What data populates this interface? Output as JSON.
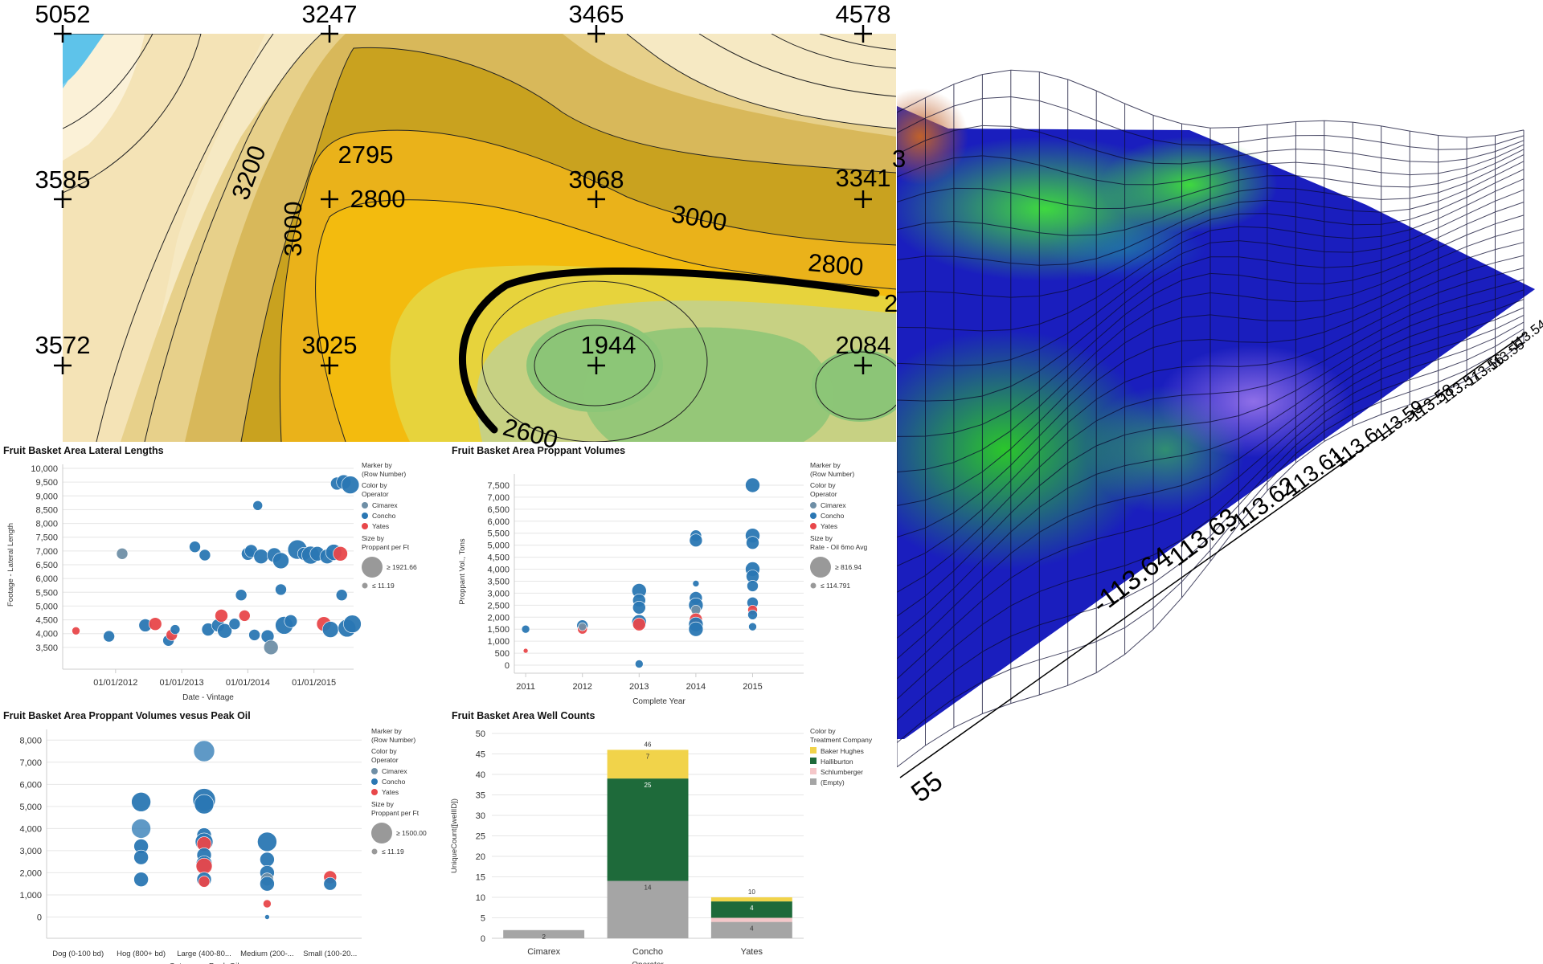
{
  "contour_map": {
    "wells": [
      {
        "label": "5052"
      },
      {
        "label": "3247"
      },
      {
        "label": "3465"
      },
      {
        "label": "4578"
      },
      {
        "label": "3585"
      },
      {
        "label": "2795"
      },
      {
        "label": "3068"
      },
      {
        "label": "3341"
      },
      {
        "label": "3572"
      },
      {
        "label": "3025"
      },
      {
        "label": "1944"
      },
      {
        "label": "2084"
      }
    ],
    "contour_labels": [
      "3200",
      "3000",
      "2800",
      "3000",
      "2800",
      "2600"
    ],
    "edge_fragments": [
      "3",
      "2"
    ]
  },
  "surface_3d": {
    "axis_ticks": [
      "-113.54",
      "-113.55",
      "-113.56",
      "-113.57",
      "-113.58",
      "-113.59",
      "-113.6",
      "-113.61",
      "-113.62",
      "-113.63",
      "-113.64",
      "55"
    ]
  },
  "chart_data": [
    {
      "type": "scatter",
      "title": "Fruit Basket Area Lateral Lengths",
      "xlabel": "Date - Vintage",
      "ylabel": "Footage - Lateral Length",
      "x_ticks": [
        "01/01/2012",
        "01/01/2013",
        "01/01/2014",
        "01/01/2015"
      ],
      "y_ticks": [
        "10,000",
        "9,500",
        "9,000",
        "8,500",
        "8,000",
        "7,500",
        "7,000",
        "6,500",
        "6,000",
        "5,500",
        "5,000",
        "4,500",
        "4,000",
        "3,500"
      ],
      "ylim": [
        3000,
        10000
      ],
      "xlim": [
        2011.2,
        2015.6
      ],
      "legend": {
        "marker_by": "Marker by",
        "marker_by_sub": "(Row Number)",
        "color_by": "Color by",
        "color_by_sub": "Operator",
        "series": [
          "Cimarex",
          "Concho",
          "Yates"
        ],
        "size_by": "Size by",
        "size_by_sub": "Proppant per Ft",
        "size_max": "≥ 1921.66",
        "size_min": "≤ 11.19"
      },
      "colors": {
        "Cimarex": "#6f8fa6",
        "Concho": "#2a77b3",
        "Yates": "#e8474a"
      },
      "points": [
        {
          "x": 2011.4,
          "y": 4100,
          "s": "Yates",
          "r": 5
        },
        {
          "x": 2011.9,
          "y": 3900,
          "s": "Concho",
          "r": 7
        },
        {
          "x": 2012.1,
          "y": 6900,
          "s": "Cimarex",
          "r": 7
        },
        {
          "x": 2012.45,
          "y": 4300,
          "s": "Concho",
          "r": 8
        },
        {
          "x": 2012.6,
          "y": 4350,
          "s": "Yates",
          "r": 8
        },
        {
          "x": 2012.8,
          "y": 3750,
          "s": "Concho",
          "r": 7
        },
        {
          "x": 2012.85,
          "y": 3950,
          "s": "Yates",
          "r": 7
        },
        {
          "x": 2012.9,
          "y": 4150,
          "s": "Concho",
          "r": 6
        },
        {
          "x": 2013.2,
          "y": 7150,
          "s": "Concho",
          "r": 7
        },
        {
          "x": 2013.35,
          "y": 6850,
          "s": "Concho",
          "r": 7
        },
        {
          "x": 2013.4,
          "y": 4150,
          "s": "Concho",
          "r": 8
        },
        {
          "x": 2013.55,
          "y": 4300,
          "s": "Concho",
          "r": 8
        },
        {
          "x": 2013.6,
          "y": 4650,
          "s": "Yates",
          "r": 8
        },
        {
          "x": 2013.65,
          "y": 4100,
          "s": "Concho",
          "r": 9
        },
        {
          "x": 2013.8,
          "y": 4350,
          "s": "Concho",
          "r": 7
        },
        {
          "x": 2013.9,
          "y": 5400,
          "s": "Concho",
          "r": 7
        },
        {
          "x": 2013.95,
          "y": 4650,
          "s": "Yates",
          "r": 7
        },
        {
          "x": 2014.0,
          "y": 6900,
          "s": "Concho",
          "r": 8
        },
        {
          "x": 2014.05,
          "y": 7000,
          "s": "Concho",
          "r": 8
        },
        {
          "x": 2014.1,
          "y": 3950,
          "s": "Concho",
          "r": 7
        },
        {
          "x": 2014.15,
          "y": 8650,
          "s": "Concho",
          "r": 6
        },
        {
          "x": 2014.2,
          "y": 6800,
          "s": "Concho",
          "r": 9
        },
        {
          "x": 2014.3,
          "y": 3900,
          "s": "Concho",
          "r": 8
        },
        {
          "x": 2014.35,
          "y": 3500,
          "s": "Cimarex",
          "r": 9
        },
        {
          "x": 2014.4,
          "y": 6850,
          "s": "Concho",
          "r": 9
        },
        {
          "x": 2014.5,
          "y": 6650,
          "s": "Concho",
          "r": 10
        },
        {
          "x": 2014.55,
          "y": 4300,
          "s": "Concho",
          "r": 11
        },
        {
          "x": 2014.5,
          "y": 5600,
          "s": "Concho",
          "r": 7
        },
        {
          "x": 2014.65,
          "y": 4450,
          "s": "Concho",
          "r": 8
        },
        {
          "x": 2014.75,
          "y": 7050,
          "s": "Concho",
          "r": 12
        },
        {
          "x": 2014.85,
          "y": 6900,
          "s": "Concho",
          "r": 8
        },
        {
          "x": 2014.95,
          "y": 6850,
          "s": "Concho",
          "r": 11
        },
        {
          "x": 2015.05,
          "y": 6900,
          "s": "Concho",
          "r": 9
        },
        {
          "x": 2015.15,
          "y": 4350,
          "s": "Yates",
          "r": 9
        },
        {
          "x": 2015.2,
          "y": 6800,
          "s": "Concho",
          "r": 9
        },
        {
          "x": 2015.25,
          "y": 4150,
          "s": "Concho",
          "r": 10
        },
        {
          "x": 2015.3,
          "y": 6950,
          "s": "Concho",
          "r": 10
        },
        {
          "x": 2015.35,
          "y": 9450,
          "s": "Concho",
          "r": 8
        },
        {
          "x": 2015.4,
          "y": 6900,
          "s": "Yates",
          "r": 9
        },
        {
          "x": 2015.42,
          "y": 5400,
          "s": "Concho",
          "r": 7
        },
        {
          "x": 2015.45,
          "y": 9500,
          "s": "Concho",
          "r": 9
        },
        {
          "x": 2015.5,
          "y": 4200,
          "s": "Concho",
          "r": 11
        },
        {
          "x": 2015.55,
          "y": 9400,
          "s": "Concho",
          "r": 11
        },
        {
          "x": 2015.58,
          "y": 4350,
          "s": "Concho",
          "r": 11
        }
      ]
    },
    {
      "type": "scatter",
      "title": "Fruit Basket Area Proppant Volumes",
      "xlabel": "Complete Year",
      "ylabel": "Proppant Vol., Tons",
      "x_ticks": [
        "2011",
        "2012",
        "2013",
        "2014",
        "2015"
      ],
      "y_ticks": [
        "7,500",
        "7,000",
        "6,500",
        "6,000",
        "5,500",
        "5,000",
        "4,500",
        "4,000",
        "3,500",
        "3,000",
        "2,500",
        "2,000",
        "1,500",
        "1,000",
        "500",
        "0"
      ],
      "ylim": [
        0,
        7800
      ],
      "xlim": [
        2010.8,
        2015.9
      ],
      "legend": {
        "marker_by": "Marker by",
        "marker_by_sub": "(Row Number)",
        "color_by": "Color by",
        "color_by_sub": "Operator",
        "series": [
          "Cimarex",
          "Concho",
          "Yates"
        ],
        "size_by": "Size by",
        "size_by_sub": "Rate - Oil 6mo Avg",
        "size_max": "≥ 816.94",
        "size_min": "≤ 114.791"
      },
      "colors": {
        "Cimarex": "#6f8fa6",
        "Concho": "#2a77b3",
        "Yates": "#e8474a"
      },
      "points": [
        {
          "x": 2011,
          "y": 1500,
          "s": "Concho",
          "r": 5
        },
        {
          "x": 2011,
          "y": 600,
          "s": "Yates",
          "r": 3
        },
        {
          "x": 2012,
          "y": 1650,
          "s": "Concho",
          "r": 7
        },
        {
          "x": 2012,
          "y": 1500,
          "s": "Yates",
          "r": 6
        },
        {
          "x": 2012,
          "y": 1600,
          "s": "Cimarex",
          "r": 5
        },
        {
          "x": 2013,
          "y": 3100,
          "s": "Concho",
          "r": 9
        },
        {
          "x": 2013,
          "y": 2700,
          "s": "Concho",
          "r": 8
        },
        {
          "x": 2013,
          "y": 2400,
          "s": "Concho",
          "r": 8
        },
        {
          "x": 2013,
          "y": 1800,
          "s": "Concho",
          "r": 9
        },
        {
          "x": 2013,
          "y": 1700,
          "s": "Yates",
          "r": 8
        },
        {
          "x": 2013,
          "y": 50,
          "s": "Concho",
          "r": 5
        },
        {
          "x": 2014,
          "y": 5400,
          "s": "Concho",
          "r": 7
        },
        {
          "x": 2014,
          "y": 5200,
          "s": "Concho",
          "r": 8
        },
        {
          "x": 2014,
          "y": 3400,
          "s": "Concho",
          "r": 4
        },
        {
          "x": 2014,
          "y": 2800,
          "s": "Concho",
          "r": 8
        },
        {
          "x": 2014,
          "y": 2500,
          "s": "Concho",
          "r": 9
        },
        {
          "x": 2014,
          "y": 2300,
          "s": "Cimarex",
          "r": 6
        },
        {
          "x": 2014,
          "y": 1900,
          "s": "Yates",
          "r": 8
        },
        {
          "x": 2014,
          "y": 1700,
          "s": "Concho",
          "r": 9
        },
        {
          "x": 2014,
          "y": 1500,
          "s": "Concho",
          "r": 9
        },
        {
          "x": 2015,
          "y": 7500,
          "s": "Concho",
          "r": 9
        },
        {
          "x": 2015,
          "y": 5400,
          "s": "Concho",
          "r": 9
        },
        {
          "x": 2015,
          "y": 5100,
          "s": "Concho",
          "r": 8
        },
        {
          "x": 2015,
          "y": 4000,
          "s": "Concho",
          "r": 9
        },
        {
          "x": 2015,
          "y": 3700,
          "s": "Concho",
          "r": 8
        },
        {
          "x": 2015,
          "y": 3300,
          "s": "Concho",
          "r": 7
        },
        {
          "x": 2015,
          "y": 2600,
          "s": "Concho",
          "r": 7
        },
        {
          "x": 2015,
          "y": 2300,
          "s": "Yates",
          "r": 6
        },
        {
          "x": 2015,
          "y": 2100,
          "s": "Concho",
          "r": 6
        },
        {
          "x": 2015,
          "y": 1600,
          "s": "Concho",
          "r": 5
        }
      ]
    },
    {
      "type": "scatter",
      "title": "Fruit Basket Area Proppant Volumes vesus Peak Oil",
      "xlabel": "Category - Peak Oil",
      "ylabel": "Proppant Vol., Tons",
      "categories": [
        "Dog (0-100 bd)",
        "Hog (800+ bd)",
        "Large (400-80...",
        "Medium (200-...",
        "Small (100-20..."
      ],
      "y_ticks": [
        "8,000",
        "7,000",
        "6,000",
        "5,000",
        "4,000",
        "3,000",
        "2,000",
        "1,000",
        "0"
      ],
      "ylim": [
        -600,
        8300
      ],
      "legend": {
        "marker_by": "Marker by",
        "marker_by_sub": "(Row Number)",
        "color_by": "Color by",
        "color_by_sub": "Operator",
        "series": [
          "Cimarex",
          "Concho",
          "Yates"
        ],
        "size_by": "Size by",
        "size_by_sub": "Proppant per Ft",
        "size_max": "≥ 1500.00",
        "size_min": "≤ 11.19"
      },
      "colors": {
        "Cimarex": "#6f8fa6",
        "Concho": "#2a77b3",
        "Yates": "#e8474a"
      },
      "points": [
        {
          "c": 1,
          "y": 5200,
          "s": "Concho",
          "r": 12
        },
        {
          "c": 1,
          "y": 4000,
          "s": "Concho",
          "r": 12,
          "light": true
        },
        {
          "c": 1,
          "y": 3200,
          "s": "Concho",
          "r": 9
        },
        {
          "c": 1,
          "y": 2700,
          "s": "Concho",
          "r": 9
        },
        {
          "c": 1,
          "y": 1700,
          "s": "Concho",
          "r": 9
        },
        {
          "c": 2,
          "y": 7500,
          "s": "Concho",
          "r": 13,
          "light": true
        },
        {
          "c": 2,
          "y": 5300,
          "s": "Concho",
          "r": 14
        },
        {
          "c": 2,
          "y": 5100,
          "s": "Concho",
          "r": 12
        },
        {
          "c": 2,
          "y": 3700,
          "s": "Concho",
          "r": 9
        },
        {
          "c": 2,
          "y": 3400,
          "s": "Concho",
          "r": 11
        },
        {
          "c": 2,
          "y": 3300,
          "s": "Yates",
          "r": 9
        },
        {
          "c": 2,
          "y": 2800,
          "s": "Concho",
          "r": 9
        },
        {
          "c": 2,
          "y": 2400,
          "s": "Concho",
          "r": 10
        },
        {
          "c": 2,
          "y": 2300,
          "s": "Yates",
          "r": 10
        },
        {
          "c": 2,
          "y": 1700,
          "s": "Concho",
          "r": 9
        },
        {
          "c": 2,
          "y": 1600,
          "s": "Yates",
          "r": 7
        },
        {
          "c": 3,
          "y": 3400,
          "s": "Concho",
          "r": 12
        },
        {
          "c": 3,
          "y": 2600,
          "s": "Concho",
          "r": 9
        },
        {
          "c": 3,
          "y": 2000,
          "s": "Concho",
          "r": 9
        },
        {
          "c": 3,
          "y": 1700,
          "s": "Cimarex",
          "r": 8
        },
        {
          "c": 3,
          "y": 1500,
          "s": "Concho",
          "r": 9
        },
        {
          "c": 3,
          "y": 600,
          "s": "Yates",
          "r": 5
        },
        {
          "c": 3,
          "y": 0,
          "s": "Concho",
          "r": 3
        },
        {
          "c": 4,
          "y": 1800,
          "s": "Yates",
          "r": 8
        },
        {
          "c": 4,
          "y": 1500,
          "s": "Concho",
          "r": 8
        }
      ]
    },
    {
      "type": "bar",
      "stacked": true,
      "title": "Fruit Basket Area Well Counts",
      "xlabel": "Operator",
      "ylabel": "UniqueCount([wellID])",
      "categories": [
        "Cimarex",
        "Concho",
        "Yates"
      ],
      "y_ticks": [
        "50",
        "45",
        "40",
        "35",
        "30",
        "25",
        "20",
        "15",
        "10",
        "5",
        "0"
      ],
      "ylim": [
        0,
        50
      ],
      "legend": {
        "color_by": "Color by",
        "color_by_sub": "Treatment Company",
        "series": [
          "Baker Hughes",
          "Halliburton",
          "Schlumberger",
          "(Empty)"
        ]
      },
      "colors": {
        "Baker Hughes": "#f1d34a",
        "Halliburton": "#1e6a3a",
        "Schlumberger": "#f5c7c9",
        "(Empty)": "#a5a5a5"
      },
      "stacks": [
        [
          {
            "s": "(Empty)",
            "v": 2
          }
        ],
        [
          {
            "s": "(Empty)",
            "v": 14
          },
          {
            "s": "Halliburton",
            "v": 25
          },
          {
            "s": "Baker Hughes",
            "v": 7
          }
        ],
        [
          {
            "s": "(Empty)",
            "v": 4
          },
          {
            "s": "Schlumberger",
            "v": 1
          },
          {
            "s": "Halliburton",
            "v": 4
          },
          {
            "s": "Baker Hughes",
            "v": 1
          }
        ]
      ],
      "segment_labels": [
        [
          {
            "s": 0,
            "text": "2"
          }
        ],
        [
          {
            "s": 0,
            "text": "14"
          },
          {
            "s": 1,
            "text": "25"
          },
          {
            "s": 2,
            "text": "7"
          }
        ],
        [
          {
            "s": 0,
            "text": "4"
          },
          {
            "s": 2,
            "text": "4"
          }
        ]
      ],
      "totals": [
        "",
        "46",
        "10"
      ]
    }
  ]
}
